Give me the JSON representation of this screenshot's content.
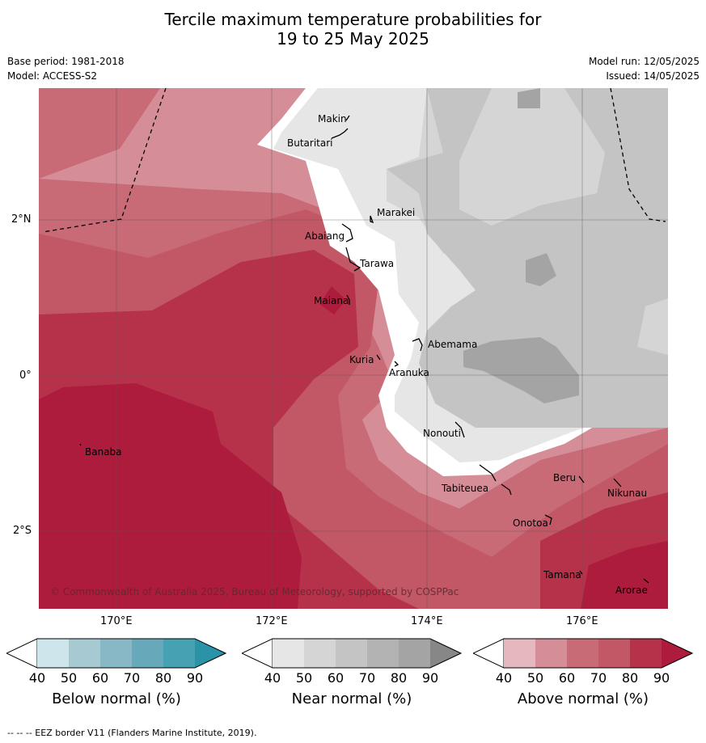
{
  "title": {
    "line1": "Tercile maximum temperature probabilities for",
    "line2": "19 to 25 May 2025"
  },
  "meta": {
    "base_period": "Base period: 1981-2018",
    "model": "Model: ACCESS-S2",
    "model_run": "Model run: 12/05/2025",
    "issued": "Issued: 14/05/2025"
  },
  "map": {
    "lat_labels": [
      "2°N",
      "0°",
      "2°S"
    ],
    "lon_labels": [
      "170°E",
      "172°E",
      "174°E",
      "176°E"
    ],
    "copyright": "© Commonwealth of Australia 2025, Bureau of Meteorology, supported by COSPPac",
    "places": [
      {
        "name": "Makin"
      },
      {
        "name": "Butaritari"
      },
      {
        "name": "Marakei"
      },
      {
        "name": "Abaiang"
      },
      {
        "name": "Tarawa"
      },
      {
        "name": "Maiana"
      },
      {
        "name": "Abemama"
      },
      {
        "name": "Kuria"
      },
      {
        "name": "Aranuka"
      },
      {
        "name": "Banaba"
      },
      {
        "name": "Nonouti"
      },
      {
        "name": "Tabiteuea"
      },
      {
        "name": "Beru"
      },
      {
        "name": "Nikunau"
      },
      {
        "name": "Onotoa"
      },
      {
        "name": "Tamana"
      },
      {
        "name": "Arorae"
      }
    ]
  },
  "colorbars": [
    {
      "label": "Below normal (%)",
      "ticks": [
        "40",
        "50",
        "60",
        "70",
        "80",
        "90"
      ],
      "colors": [
        "#cfe5ec",
        "#a7c9d2",
        "#88b7c5",
        "#67a9bb",
        "#46a2b2",
        "#2a93a8"
      ]
    },
    {
      "label": "Near normal (%)",
      "ticks": [
        "40",
        "50",
        "60",
        "70",
        "80",
        "90"
      ],
      "colors": [
        "#e6e6e6",
        "#d5d5d5",
        "#c4c4c4",
        "#b3b3b3",
        "#a4a4a4",
        "#878787"
      ]
    },
    {
      "label": "Above normal (%)",
      "ticks": [
        "40",
        "50",
        "60",
        "70",
        "80",
        "90"
      ],
      "colors": [
        "#e5b8c0",
        "#d58e97",
        "#c86b77",
        "#c25765",
        "#b6324a",
        "#ad1c3c"
      ]
    }
  ],
  "footer": "--  --  -- EEZ border V11 (Flanders Marine Institute, 2019)."
}
